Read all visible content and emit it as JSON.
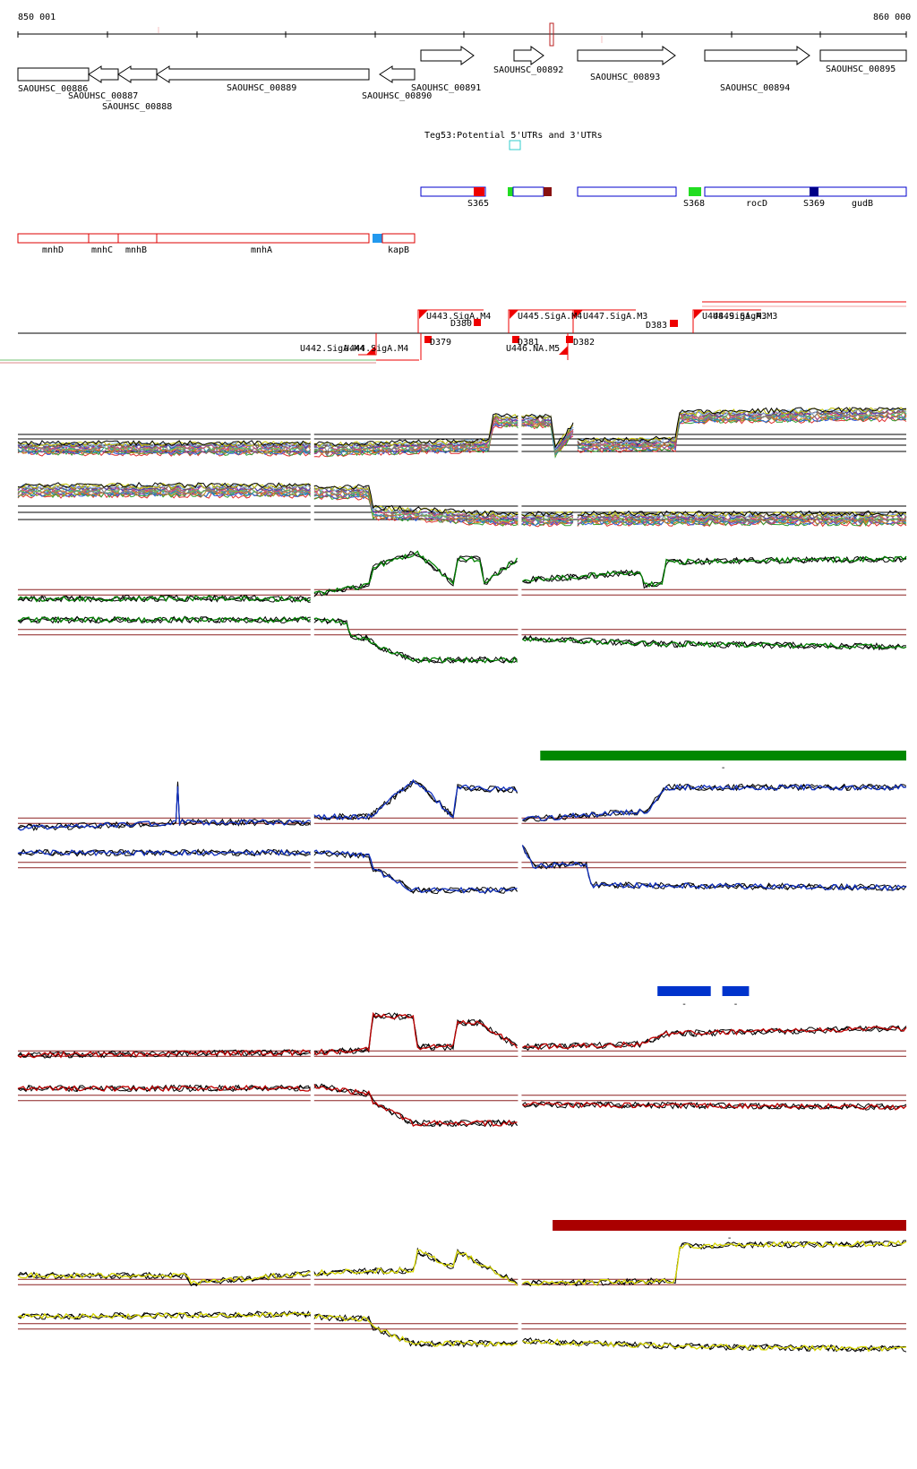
{
  "coords": {
    "start_label": "850 001",
    "end_label": "860 000",
    "start": 850001,
    "end": 860000
  },
  "colors": {
    "gene_outline": "#000000",
    "teg_box": "#33cccc",
    "srna_outline": "#0000cc",
    "operon_outline": "#dd0000",
    "promoter": "#ee0000",
    "guide_line": "#8b2020",
    "track_green": "#008000",
    "track_blue": "#1030c0",
    "track_red": "#c00000",
    "track_yellow": "#d8d800",
    "bar_green": "#008800",
    "bar_blue": "#0033cc",
    "bar_darkred": "#aa0000"
  },
  "genes": [
    {
      "id": "SAOUHSC_00886",
      "strand": "-",
      "label": "SAOUHSC_00886"
    },
    {
      "id": "SAOUHSC_00887",
      "strand": "-",
      "label": "SAOUHSC_00887"
    },
    {
      "id": "SAOUHSC_00888",
      "strand": "-",
      "label": "SAOUHSC_00888"
    },
    {
      "id": "SAOUHSC_00889",
      "strand": "-",
      "label": "SAOUHSC_00889"
    },
    {
      "id": "SAOUHSC_00890",
      "strand": "-",
      "label": "SAOUHSC_00890"
    },
    {
      "id": "SAOUHSC_00891",
      "strand": "+",
      "label": "SAOUHSC_00891"
    },
    {
      "id": "SAOUHSC_00892",
      "strand": "+",
      "label": "SAOUHSC_00892"
    },
    {
      "id": "SAOUHSC_00893",
      "strand": "+",
      "label": "SAOUHSC_00893"
    },
    {
      "id": "SAOUHSC_00894",
      "strand": "+",
      "label": "SAOUHSC_00894"
    },
    {
      "id": "SAOUHSC_00895",
      "strand": "+",
      "label": "SAOUHSC_00895"
    }
  ],
  "teg_label": "Teg53:Potential 5'UTRs and 3'UTRs",
  "srna_labels": [
    "S365",
    "S368",
    "rocD",
    "S369",
    "gudB"
  ],
  "operon_labels": [
    "mnhD",
    "mnhC",
    "mnhB",
    "mnhA",
    "kapB"
  ],
  "promoter_labels": [
    "U443.SigA.M4",
    "D380",
    "U445.SigA.M4",
    "U447.SigA.M3",
    "D383",
    "U448.SigA.M3",
    "U449.SigA.M3",
    "D379",
    "D381",
    "D382",
    "U442.SigA.M4",
    "U444.SigA.M4",
    "U446.NA.M5"
  ],
  "bar_labels": [
    "-",
    "-",
    "-",
    "-"
  ],
  "chart_data": [
    {
      "type": "line",
      "name": "tiling-array-all-conditions",
      "x_range": [
        850001,
        860000
      ],
      "strands": [
        "+",
        "-"
      ],
      "series_colors": [
        "#e03030",
        "#30a030",
        "#3060e0",
        "#c09020",
        "#a040a0",
        "#20a0a0",
        "#e07020",
        "#808080",
        "#60c060",
        "#d04080",
        "#4040c0",
        "#806040",
        "#90c0f0",
        "#c0c000",
        "#000000"
      ],
      "segments_plus": [
        {
          "x": [
            850001,
            853300,
            853330,
            855300,
            855350,
            856000,
            856050,
            856250
          ],
          "y": [
            0.35,
            0.35,
            0.33,
            0.4,
            0.78,
            0.78,
            0.3,
            0.65
          ]
        },
        {
          "x": [
            856300,
            857400,
            857450,
            860000
          ],
          "y": [
            0.4,
            0.42,
            0.85,
            0.9
          ]
        }
      ],
      "segments_minus": [
        {
          "x": [
            850001,
            853300,
            853330,
            853950,
            854000,
            855350,
            855400,
            856250
          ],
          "y": [
            0.75,
            0.75,
            0.72,
            0.72,
            0.4,
            0.3,
            0.28,
            0.3
          ]
        },
        {
          "x": [
            856300,
            860000
          ],
          "y": [
            0.3,
            0.3
          ]
        }
      ]
    },
    {
      "type": "line",
      "name": "green-track",
      "color": "#008000",
      "x_range": [
        850001,
        860000
      ],
      "plus": [
        {
          "x": [
            850001,
            852000,
            853300,
            853330,
            853950,
            854000,
            854450,
            854500,
            854900,
            854950,
            855200,
            855250,
            855620
          ],
          "y": [
            0.1,
            0.12,
            0.1,
            0.2,
            0.35,
            0.7,
            0.95,
            0.95,
            0.4,
            0.85,
            0.85,
            0.4,
            0.85
          ]
        },
        {
          "x": [
            855680,
            857000,
            857050,
            857250,
            857300,
            860000
          ],
          "y": [
            0.45,
            0.6,
            0.35,
            0.4,
            0.8,
            0.85
          ]
        }
      ],
      "minus": [
        {
          "x": [
            850001,
            853300,
            853330,
            853700,
            853750,
            853950,
            854000,
            854450,
            855620
          ],
          "y": [
            0.8,
            0.8,
            0.8,
            0.75,
            0.5,
            0.45,
            0.35,
            0.05,
            0.05
          ]
        },
        {
          "x": [
            855680,
            857300,
            860000
          ],
          "y": [
            0.45,
            0.35,
            0.3
          ]
        }
      ]
    },
    {
      "type": "line",
      "name": "blue-track",
      "color": "#1030c0",
      "x_range": [
        850001,
        860000
      ],
      "bar": {
        "x_start": 855880,
        "x_end": 860000,
        "color": "#008800"
      },
      "plus": [
        {
          "x": [
            850001,
            851200,
            851780,
            851800,
            851820,
            853300,
            853330,
            853950,
            854450,
            854500,
            854900,
            854950,
            855620
          ],
          "y": [
            0.1,
            0.15,
            0.2,
            0.9,
            0.2,
            0.2,
            0.3,
            0.3,
            0.95,
            0.95,
            0.3,
            0.85,
            0.8
          ]
        },
        {
          "x": [
            855680,
            857000,
            857050,
            857300,
            860000
          ],
          "y": [
            0.25,
            0.4,
            0.35,
            0.85,
            0.85
          ]
        }
      ],
      "minus": [
        {
          "x": [
            850001,
            853300,
            853330,
            853950,
            854000,
            854450,
            855620
          ],
          "y": [
            0.8,
            0.8,
            0.8,
            0.75,
            0.5,
            0.1,
            0.1
          ]
        },
        {
          "x": [
            855680,
            855800,
            856400,
            856450,
            860000
          ],
          "y": [
            0.95,
            0.55,
            0.6,
            0.2,
            0.15
          ]
        }
      ]
    },
    {
      "type": "line",
      "name": "red-track",
      "color": "#c00000",
      "x_range": [
        850001,
        860000
      ],
      "bars": [
        {
          "x_start": 857200,
          "x_end": 857800,
          "color": "#0033cc"
        },
        {
          "x_start": 857930,
          "x_end": 858230,
          "color": "#0033cc"
        }
      ],
      "plus": [
        {
          "x": [
            850001,
            853300,
            853330,
            853950,
            854000,
            854450,
            854500,
            854900,
            854950,
            855200,
            855620
          ],
          "y": [
            0.2,
            0.25,
            0.25,
            0.3,
            0.95,
            0.9,
            0.35,
            0.35,
            0.8,
            0.8,
            0.35
          ]
        },
        {
          "x": [
            855680,
            857000,
            857300,
            860000
          ],
          "y": [
            0.35,
            0.4,
            0.6,
            0.7
          ]
        }
      ],
      "minus": [
        {
          "x": [
            850001,
            853300,
            853330,
            853950,
            854000,
            854450,
            855620
          ],
          "y": [
            0.75,
            0.75,
            0.8,
            0.65,
            0.5,
            0.1,
            0.1
          ]
        },
        {
          "x": [
            855680,
            860000
          ],
          "y": [
            0.45,
            0.4
          ]
        }
      ]
    },
    {
      "type": "line",
      "name": "yellow-track",
      "color": "#d8d800",
      "x_range": [
        850001,
        860000
      ],
      "bar": {
        "x_start": 856020,
        "x_end": 860000,
        "color": "#aa0000"
      },
      "plus": [
        {
          "x": [
            850001,
            851900,
            851950,
            853300,
            853330,
            854450,
            854500,
            854900,
            854950,
            855620
          ],
          "y": [
            0.35,
            0.35,
            0.2,
            0.4,
            0.4,
            0.45,
            0.8,
            0.5,
            0.8,
            0.2
          ]
        },
        {
          "x": [
            855680,
            857400,
            857450,
            860000
          ],
          "y": [
            0.2,
            0.25,
            0.9,
            0.95
          ]
        }
      ],
      "minus": [
        {
          "x": [
            850001,
            853300,
            853330,
            853950,
            854000,
            854450,
            855620
          ],
          "y": [
            0.75,
            0.8,
            0.75,
            0.7,
            0.55,
            0.25,
            0.25
          ]
        },
        {
          "x": [
            855680,
            857400,
            860000
          ],
          "y": [
            0.3,
            0.2,
            0.15
          ]
        }
      ]
    }
  ]
}
